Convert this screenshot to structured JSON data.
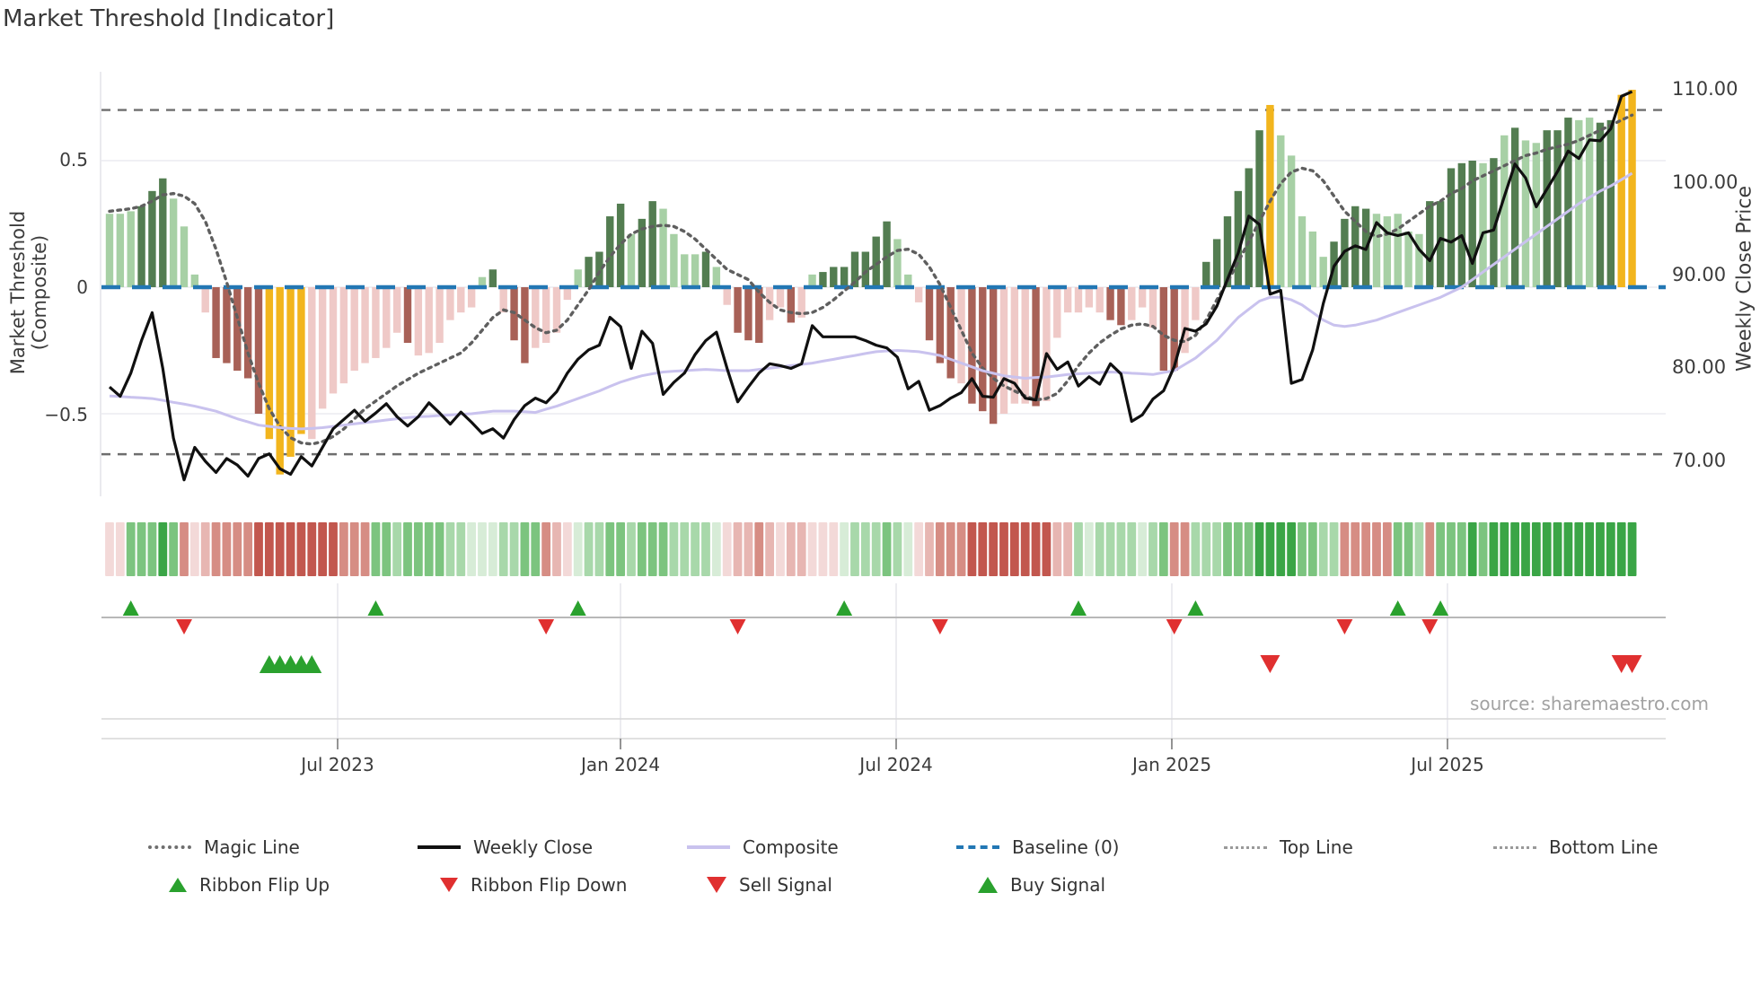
{
  "title": "Market Threshold [Indicator]",
  "source_label": "source: sharemaestro.com",
  "axes": {
    "left_title": "Market Threshold (Composite)",
    "right_title": "Weekly Close Price",
    "left_ticks": [
      "0.5",
      "0",
      "−0.5"
    ],
    "right_ticks": [
      "110.00",
      "100.00",
      "90.00",
      "80.00",
      "70.00"
    ],
    "x_ticks": [
      "Jul 2023",
      "Jan 2024",
      "Jul 2024",
      "Jan 2025",
      "Jul 2025"
    ]
  },
  "legend": {
    "magic": "Magic Line",
    "weekly_close": "Weekly Close",
    "composite": "Composite",
    "baseline": "Baseline (0)",
    "top_line": "Top Line",
    "bottom_line": "Bottom Line",
    "flip_up": "Ribbon Flip Up",
    "flip_down": "Ribbon Flip Down",
    "sell": "Sell Signal",
    "buy": "Buy Signal"
  },
  "colors": {
    "bars": {
      "lg": "#a7d0a5",
      "dg": "#537d51",
      "lr": "#efc9c7",
      "dr": "#a86157",
      "y": "#f2b51d"
    },
    "ribbon": {
      "g1": "#d7ecd7",
      "g2": "#a8d8aa",
      "g3": "#7cc47f",
      "g4": "#3aa546",
      "r1": "#f3d9d8",
      "r2": "#e7b6b2",
      "r3": "#d68d84",
      "r4": "#c2574e"
    },
    "baseline": "#2277b4",
    "magic": "#5f5f5f",
    "close": "#101010",
    "composite": "#c9c2ee",
    "band_lines": "#6e6e6e",
    "grid": "#ebebf0",
    "flip_up": "#2aa12e",
    "flip_down": "#e03030",
    "buy": "#2aa12e",
    "sell": "#e03030"
  },
  "chart_data": {
    "type": "bar",
    "subtype": "composite bars + weekly close line + magic line + composite line + signal ribbon",
    "weeks": 144,
    "x_tick_labels": [
      "Jul 2023",
      "Jan 2024",
      "Jul 2024",
      "Jan 2025",
      "Jul 2025"
    ],
    "x_tick_weeks": [
      21.42,
      47.99,
      73.88,
      99.77,
      125.66
    ],
    "left_axis": {
      "label": "Market Threshold (Composite)",
      "ticks": [
        0.5,
        0,
        -0.5
      ]
    },
    "right_axis": {
      "label": "Weekly Close Price",
      "ticks": [
        110,
        100,
        90,
        80,
        70
      ]
    },
    "baseline_value": 0,
    "top_line_value": 0.7,
    "bottom_line_value": -0.66,
    "composite_bars": [
      0.29,
      0.29,
      0.3,
      0.32,
      0.38,
      0.43,
      0.35,
      0.24,
      0.05,
      -0.1,
      -0.28,
      -0.3,
      -0.33,
      -0.36,
      -0.5,
      -0.6,
      -0.74,
      -0.67,
      -0.58,
      -0.6,
      -0.48,
      -0.42,
      -0.38,
      -0.33,
      -0.3,
      -0.28,
      -0.24,
      -0.18,
      -0.22,
      -0.27,
      -0.26,
      -0.22,
      -0.13,
      -0.1,
      -0.08,
      0.04,
      0.07,
      -0.1,
      -0.21,
      -0.3,
      -0.24,
      -0.22,
      -0.18,
      -0.05,
      0.07,
      0.12,
      0.14,
      0.28,
      0.33,
      0.21,
      0.27,
      0.34,
      0.31,
      0.21,
      0.13,
      0.13,
      0.14,
      0.08,
      -0.07,
      -0.18,
      -0.21,
      -0.22,
      -0.13,
      -0.08,
      -0.14,
      -0.12,
      0.05,
      0.06,
      0.08,
      0.08,
      0.14,
      0.14,
      0.2,
      0.26,
      0.19,
      0.05,
      -0.06,
      -0.21,
      -0.3,
      -0.36,
      -0.38,
      -0.46,
      -0.49,
      -0.54,
      -0.5,
      -0.46,
      -0.46,
      -0.47,
      -0.45,
      -0.2,
      -0.1,
      -0.1,
      -0.08,
      -0.1,
      -0.13,
      -0.15,
      -0.13,
      -0.08,
      -0.16,
      -0.33,
      -0.33,
      -0.26,
      -0.13,
      0.1,
      0.19,
      0.28,
      0.38,
      0.47,
      0.62,
      0.72,
      0.6,
      0.52,
      0.28,
      0.22,
      0.12,
      0.18,
      0.27,
      0.32,
      0.31,
      0.29,
      0.28,
      0.29,
      0.22,
      0.21,
      0.34,
      0.34,
      0.47,
      0.49,
      0.5,
      0.49,
      0.51,
      0.6,
      0.63,
      0.58,
      0.57,
      0.62,
      0.62,
      0.67,
      0.66,
      0.67,
      0.65,
      0.66,
      0.76,
      0.78
    ],
    "bar_color_class": [
      "lg",
      "lg",
      "lg",
      "dg",
      "dg",
      "dg",
      "lg",
      "lg",
      "lg",
      "lr",
      "dr",
      "dr",
      "dr",
      "dr",
      "dr",
      "y",
      "y",
      "y",
      "y",
      "lr",
      "lr",
      "lr",
      "lr",
      "lr",
      "lr",
      "lr",
      "lr",
      "lr",
      "dr",
      "lr",
      "lr",
      "lr",
      "lr",
      "lr",
      "lr",
      "lg",
      "dg",
      "lr",
      "dr",
      "dr",
      "lr",
      "lr",
      "lr",
      "lr",
      "lg",
      "dg",
      "dg",
      "dg",
      "dg",
      "lg",
      "dg",
      "dg",
      "lg",
      "lg",
      "lg",
      "lg",
      "dg",
      "lg",
      "lr",
      "dr",
      "dr",
      "dr",
      "lr",
      "lr",
      "dr",
      "lr",
      "lg",
      "dg",
      "dg",
      "dg",
      "dg",
      "dg",
      "dg",
      "dg",
      "lg",
      "lg",
      "lr",
      "dr",
      "dr",
      "dr",
      "lr",
      "dr",
      "dr",
      "dr",
      "lr",
      "lr",
      "lr",
      "dr",
      "lr",
      "lr",
      "lr",
      "lr",
      "lr",
      "lr",
      "dr",
      "dr",
      "lr",
      "lr",
      "lr",
      "dr",
      "dr",
      "lr",
      "lr",
      "dg",
      "dg",
      "dg",
      "dg",
      "dg",
      "dg",
      "y",
      "lg",
      "lg",
      "lg",
      "lg",
      "lg",
      "dg",
      "dg",
      "dg",
      "dg",
      "lg",
      "lg",
      "lg",
      "lg",
      "lg",
      "dg",
      "dg",
      "dg",
      "dg",
      "dg",
      "lg",
      "dg",
      "lg",
      "dg",
      "lg",
      "lg",
      "dg",
      "dg",
      "dg",
      "lg",
      "lg",
      "dg",
      "dg",
      "y",
      "y"
    ],
    "weekly_close": [
      78.0,
      77.0,
      79.5,
      83.0,
      86.0,
      80.0,
      72.5,
      68.0,
      71.5,
      70.0,
      68.8,
      70.3,
      69.6,
      68.4,
      70.3,
      70.8,
      69.2,
      68.6,
      70.5,
      69.5,
      71.5,
      73.5,
      74.5,
      75.5,
      74.3,
      75.2,
      76.2,
      74.8,
      73.8,
      74.8,
      76.3,
      75.2,
      74.0,
      75.3,
      74.2,
      73.0,
      73.5,
      72.5,
      74.5,
      76.0,
      76.8,
      76.3,
      77.5,
      79.5,
      81.0,
      82.0,
      82.5,
      85.5,
      84.5,
      80.0,
      84.0,
      82.7,
      77.2,
      78.5,
      79.5,
      81.5,
      83.0,
      83.9,
      80.0,
      76.4,
      78.0,
      79.5,
      80.5,
      80.3,
      80.0,
      80.5,
      84.6,
      83.4,
      83.4,
      83.4,
      83.4,
      83.0,
      82.5,
      82.2,
      81.2,
      77.8,
      78.6,
      75.5,
      76.0,
      76.8,
      77.4,
      78.9,
      77.0,
      76.9,
      78.9,
      78.4,
      76.8,
      76.6,
      81.6,
      79.9,
      80.7,
      78.1,
      79.1,
      78.3,
      80.5,
      79.4,
      74.3,
      75.0,
      76.7,
      77.6,
      80.2,
      84.3,
      84.0,
      84.8,
      86.7,
      89.6,
      92.4,
      96.4,
      95.5,
      88.0,
      88.4,
      78.4,
      78.8,
      82.0,
      87.0,
      91.0,
      92.6,
      93.2,
      92.8,
      95.7,
      94.6,
      94.3,
      94.6,
      92.8,
      91.6,
      94.0,
      93.6,
      94.3,
      91.3,
      94.6,
      94.9,
      98.5,
      102.0,
      100.5,
      97.4,
      99.3,
      101.2,
      103.4,
      102.6,
      104.6,
      104.5,
      105.8,
      109.3,
      109.8
    ],
    "magic_line": [
      0.3,
      0.305,
      0.31,
      0.32,
      0.34,
      0.365,
      0.37,
      0.36,
      0.33,
      0.26,
      0.15,
      0.02,
      -0.12,
      -0.26,
      -0.38,
      -0.48,
      -0.55,
      -0.595,
      -0.615,
      -0.62,
      -0.61,
      -0.59,
      -0.56,
      -0.52,
      -0.48,
      -0.45,
      -0.42,
      -0.39,
      -0.365,
      -0.34,
      -0.32,
      -0.3,
      -0.28,
      -0.26,
      -0.22,
      -0.17,
      -0.12,
      -0.09,
      -0.1,
      -0.13,
      -0.16,
      -0.18,
      -0.17,
      -0.13,
      -0.07,
      -0.01,
      0.06,
      0.12,
      0.17,
      0.21,
      0.23,
      0.24,
      0.245,
      0.24,
      0.22,
      0.19,
      0.15,
      0.11,
      0.07,
      0.05,
      0.03,
      -0.02,
      -0.06,
      -0.09,
      -0.1,
      -0.105,
      -0.1,
      -0.08,
      -0.05,
      -0.015,
      0.02,
      0.06,
      0.09,
      0.12,
      0.145,
      0.15,
      0.13,
      0.08,
      0.01,
      -0.08,
      -0.17,
      -0.26,
      -0.32,
      -0.36,
      -0.39,
      -0.41,
      -0.43,
      -0.445,
      -0.44,
      -0.42,
      -0.37,
      -0.31,
      -0.26,
      -0.22,
      -0.19,
      -0.165,
      -0.15,
      -0.145,
      -0.155,
      -0.19,
      -0.21,
      -0.215,
      -0.19,
      -0.13,
      -0.05,
      0.02,
      0.1,
      0.18,
      0.26,
      0.34,
      0.41,
      0.455,
      0.47,
      0.46,
      0.42,
      0.36,
      0.3,
      0.26,
      0.22,
      0.2,
      0.21,
      0.23,
      0.26,
      0.29,
      0.32,
      0.34,
      0.37,
      0.39,
      0.42,
      0.44,
      0.46,
      0.48,
      0.5,
      0.52,
      0.53,
      0.545,
      0.555,
      0.565,
      0.58,
      0.6,
      0.62,
      0.64,
      0.66,
      0.68
    ],
    "composite_line": [
      -0.43,
      -0.432,
      -0.435,
      -0.437,
      -0.44,
      -0.447,
      -0.455,
      -0.462,
      -0.47,
      -0.48,
      -0.49,
      -0.505,
      -0.52,
      -0.532,
      -0.545,
      -0.55,
      -0.555,
      -0.558,
      -0.56,
      -0.558,
      -0.555,
      -0.55,
      -0.545,
      -0.54,
      -0.535,
      -0.53,
      -0.525,
      -0.52,
      -0.515,
      -0.512,
      -0.51,
      -0.507,
      -0.505,
      -0.502,
      -0.5,
      -0.495,
      -0.49,
      -0.49,
      -0.49,
      -0.492,
      -0.495,
      -0.482,
      -0.47,
      -0.455,
      -0.44,
      -0.425,
      -0.41,
      -0.392,
      -0.375,
      -0.362,
      -0.35,
      -0.342,
      -0.335,
      -0.332,
      -0.33,
      -0.327,
      -0.325,
      -0.327,
      -0.33,
      -0.33,
      -0.33,
      -0.325,
      -0.32,
      -0.315,
      -0.31,
      -0.305,
      -0.3,
      -0.292,
      -0.285,
      -0.277,
      -0.27,
      -0.262,
      -0.255,
      -0.252,
      -0.25,
      -0.252,
      -0.255,
      -0.262,
      -0.27,
      -0.285,
      -0.3,
      -0.315,
      -0.33,
      -0.34,
      -0.35,
      -0.355,
      -0.36,
      -0.357,
      -0.355,
      -0.35,
      -0.345,
      -0.342,
      -0.34,
      -0.337,
      -0.335,
      -0.337,
      -0.34,
      -0.342,
      -0.345,
      -0.337,
      -0.33,
      -0.305,
      -0.28,
      -0.245,
      -0.21,
      -0.165,
      -0.12,
      -0.087,
      -0.055,
      -0.04,
      -0.04,
      -0.05,
      -0.07,
      -0.1,
      -0.13,
      -0.15,
      -0.155,
      -0.15,
      -0.14,
      -0.13,
      -0.115,
      -0.1,
      -0.085,
      -0.07,
      -0.055,
      -0.04,
      -0.02,
      0.0,
      0.03,
      0.06,
      0.09,
      0.12,
      0.15,
      0.18,
      0.21,
      0.24,
      0.27,
      0.3,
      0.33,
      0.355,
      0.38,
      0.4,
      0.425,
      0.45
    ],
    "ribbon": [
      "r1",
      "r1",
      "g3",
      "g3",
      "g3",
      "g4",
      "g3",
      "r3",
      "r1",
      "r2",
      "r3",
      "r3",
      "r3",
      "r3",
      "r4",
      "r4",
      "r4",
      "r4",
      "r4",
      "r4",
      "r4",
      "r4",
      "r3",
      "r3",
      "r3",
      "g3",
      "g3",
      "g2",
      "g3",
      "g3",
      "g3",
      "g3",
      "g2",
      "g2",
      "g1",
      "g1",
      "g1",
      "g2",
      "g2",
      "g3",
      "g3",
      "r3",
      "r2",
      "r1",
      "g1",
      "g2",
      "g2",
      "g3",
      "g3",
      "g2",
      "g3",
      "g3",
      "g3",
      "g2",
      "g2",
      "g2",
      "g2",
      "g1",
      "r1",
      "r2",
      "r2",
      "r3",
      "r2",
      "r1",
      "r2",
      "r2",
      "r1",
      "r1",
      "r1",
      "g1",
      "g2",
      "g2",
      "g2",
      "g3",
      "g2",
      "g1",
      "r1",
      "r2",
      "r3",
      "r3",
      "r3",
      "r4",
      "r4",
      "r4",
      "r4",
      "r4",
      "r4",
      "r4",
      "r4",
      "r2",
      "r2",
      "g2",
      "g1",
      "g2",
      "g2",
      "g2",
      "g2",
      "g1",
      "g2",
      "g3",
      "r3",
      "r3",
      "g2",
      "g2",
      "g2",
      "g3",
      "g3",
      "g3",
      "g4",
      "g4",
      "g4",
      "g4",
      "g3",
      "g3",
      "g2",
      "g2",
      "r3",
      "r3",
      "r3",
      "r3",
      "r3",
      "g3",
      "g3",
      "g2",
      "r3",
      "g3",
      "g3",
      "g3",
      "g4",
      "g3",
      "g4",
      "g4",
      "g4",
      "g4",
      "g4",
      "g4",
      "g4",
      "g4",
      "g4",
      "g4",
      "g4",
      "g4",
      "g4",
      "g4"
    ],
    "signals": {
      "flip_up_weeks": [
        2,
        25,
        44,
        69,
        91,
        102,
        121,
        125
      ],
      "flip_down_weeks": [
        7,
        41,
        59,
        78,
        100,
        116,
        124
      ],
      "buy_weeks": [
        15,
        16,
        17,
        18,
        19
      ],
      "sell_weeks": [
        109,
        142,
        143
      ]
    },
    "legend_position": "bottom",
    "grid": "horizontal only (0.5, 0, -0.5)"
  }
}
